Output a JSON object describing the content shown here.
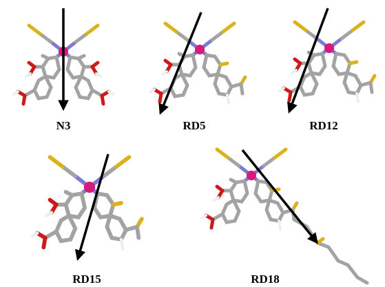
{
  "labels": [
    "N3",
    "RD5",
    "RD12",
    "RD15",
    "RD18"
  ]
}
